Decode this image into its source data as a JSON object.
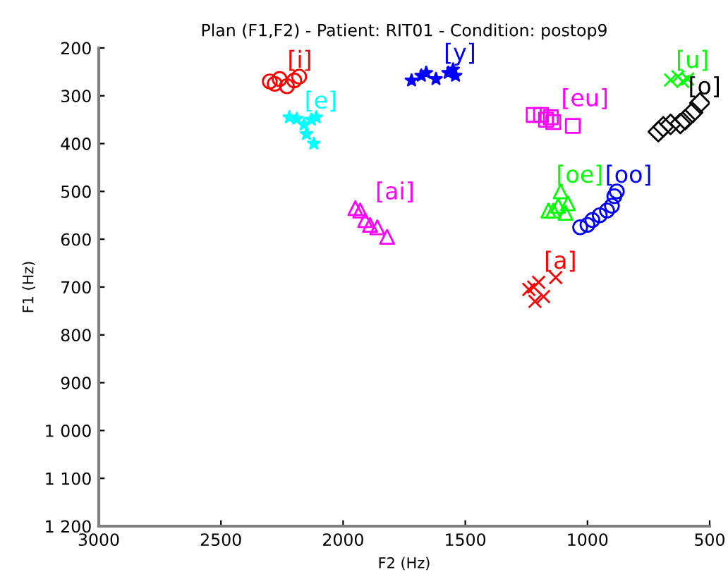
{
  "chart_data": {
    "type": "scatter",
    "title": "Plan (F1,F2) - Patient: RIT01 - Condition: postop9",
    "xlabel": "F2 (Hz)",
    "ylabel": "F1 (Hz)",
    "xlim": [
      3000,
      500
    ],
    "ylim": [
      1200,
      200
    ],
    "xticks": [
      3000,
      2500,
      2000,
      1500,
      1000,
      500
    ],
    "yticks": [
      200,
      300,
      400,
      500,
      600,
      700,
      800,
      900,
      {
        "value": 1000,
        "label": "1 000"
      },
      {
        "value": 1100,
        "label": "1 100"
      },
      {
        "value": 1200,
        "label": "1 200"
      }
    ],
    "grid": false,
    "legend": false,
    "series": [
      {
        "name": "[i]",
        "color": "#ff0000",
        "marker": "circle",
        "x": [
          2300,
          2280,
          2260,
          2230,
          2200,
          2180
        ],
        "values": [
          270,
          275,
          265,
          280,
          268,
          260
        ]
      },
      {
        "name": "[e]",
        "color": "#00ffff",
        "marker": "star",
        "x": [
          2220,
          2190,
          2160,
          2150,
          2120,
          2130,
          2110
        ],
        "values": [
          345,
          348,
          360,
          380,
          400,
          350,
          345
        ]
      },
      {
        "name": "[y]",
        "color": "#0000ff",
        "marker": "star",
        "x": [
          1720,
          1680,
          1660,
          1620,
          1570,
          1540,
          1550
        ],
        "values": [
          268,
          258,
          252,
          265,
          252,
          258,
          245
        ]
      },
      {
        "name": "[eu]",
        "color": "#ff00ff",
        "marker": "square",
        "x": [
          1220,
          1190,
          1170,
          1140,
          1060,
          1150
        ],
        "values": [
          340,
          340,
          350,
          355,
          363,
          345
        ]
      },
      {
        "name": "[u]",
        "color": "#00ff00",
        "marker": "cross",
        "x": [
          660,
          630,
          610,
          590
        ],
        "values": [
          267,
          260,
          270,
          265
        ]
      },
      {
        "name": "[o]",
        "color": "#000000",
        "marker": "diamond",
        "x": [
          710,
          690,
          660,
          620,
          600,
          570,
          540
        ],
        "values": [
          375,
          365,
          360,
          358,
          350,
          335,
          315
        ]
      },
      {
        "name": "[oe]",
        "color": "#00ff00",
        "marker": "triangle",
        "x": [
          1160,
          1140,
          1120,
          1090,
          1080,
          1110
        ],
        "values": [
          540,
          540,
          530,
          545,
          525,
          500
        ]
      },
      {
        "name": "[oo]",
        "color": "#0000ff",
        "marker": "circle",
        "x": [
          1030,
          1000,
          980,
          950,
          920,
          900,
          890,
          880
        ],
        "values": [
          575,
          570,
          560,
          550,
          540,
          530,
          510,
          500
        ]
      },
      {
        "name": "[ai]",
        "color": "#ff00ff",
        "marker": "triangle",
        "x": [
          1950,
          1930,
          1910,
          1890,
          1860,
          1820
        ],
        "values": [
          535,
          540,
          560,
          570,
          575,
          595
        ]
      },
      {
        "name": "[a]",
        "color": "#ff0000",
        "marker": "cross",
        "x": [
          1240,
          1215,
          1180,
          1220,
          1200,
          1130
        ],
        "values": [
          705,
          730,
          720,
          700,
          690,
          680
        ]
      }
    ]
  }
}
